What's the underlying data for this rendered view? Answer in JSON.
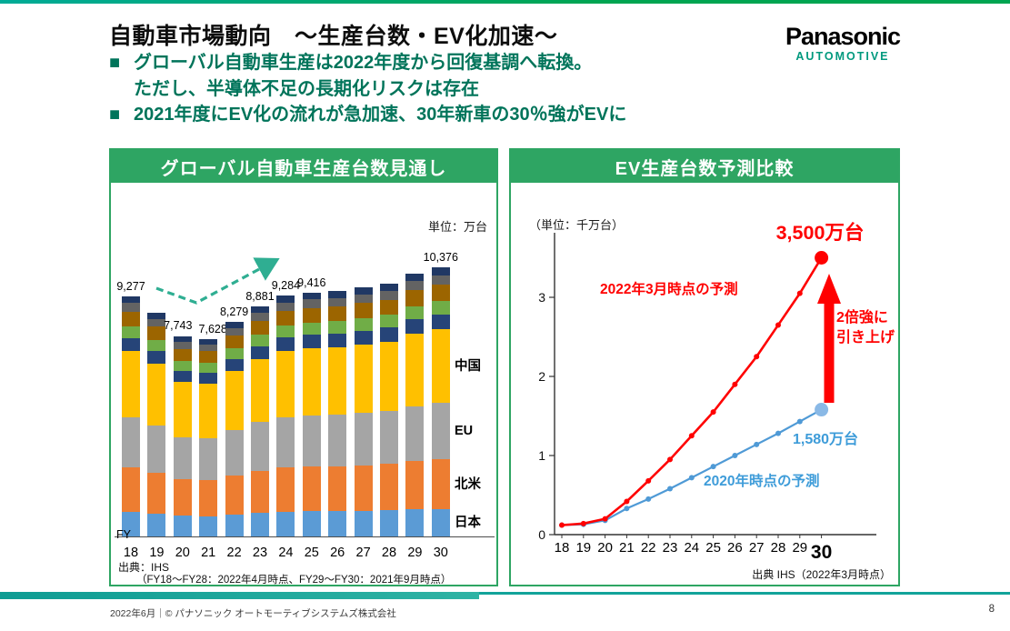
{
  "slide": {
    "title": "自動車市場動向　～生産台数・EV化加速～",
    "logo": {
      "brand": "Panasonic",
      "sub": "AUTOMOTIVE",
      "sub_color": "#00997E"
    },
    "bullets": [
      {
        "marker": "■",
        "text": "グローバル自動車生産は2022年度から回復基調へ転換。"
      },
      {
        "marker": "",
        "text": "ただし、半導体不足の長期化リスクは存在"
      },
      {
        "marker": "■",
        "text": "2021年度にEV化の流れが急加速、30年新車の30％強がEVに"
      }
    ],
    "accent_green": "#2EA563",
    "footer": {
      "left": "2022年6月｜© パナソニック オートモーティブシステムズ株式会社",
      "page": "8"
    }
  },
  "left_panel": {
    "header": "グローバル自動車生産台数見通し",
    "unit": "単位：万台",
    "fy_label": "FY",
    "source1": "出典：IHS",
    "source2": "（FY18～FY28：2022年4月時点、FY29～FY30：2021年9月時点）"
  },
  "right_panel": {
    "header": "EV生産台数予測比較",
    "unit": "（単位：千万台）",
    "source": "出典 IHS（2022年3月時点）"
  },
  "chart_data": [
    {
      "type": "bar",
      "stacked": true,
      "title": "グローバル自動車生産台数見通し",
      "unit": "万台",
      "categories": [
        "18",
        "19",
        "20",
        "21",
        "22",
        "23",
        "24",
        "25",
        "26",
        "27",
        "28",
        "29",
        "30"
      ],
      "totals": [
        9277,
        8650,
        7743,
        7628,
        8279,
        8881,
        9284,
        9416,
        9480,
        9620,
        9760,
        10150,
        10376
      ],
      "value_labels": {
        "0": "9,277",
        "2": "7,743",
        "3": "7,628",
        "4": "8,279",
        "5": "8,881",
        "6": "9,284",
        "7": "9,416",
        "12": "10,376"
      },
      "series": [
        {
          "key": "japan",
          "name": "日本",
          "color": "#5B9BD5",
          "fraction": 0.103
        },
        {
          "key": "north-america",
          "name": "北米",
          "color": "#ED7D31",
          "fraction": 0.183
        },
        {
          "key": "eu",
          "name": "EU",
          "color": "#A5A5A5",
          "fraction": 0.21
        },
        {
          "key": "china",
          "name": "中国",
          "color": "#FFC000",
          "fraction": 0.275
        },
        {
          "key": "other-1",
          "name": "other-1",
          "color": "#264478",
          "fraction": 0.055
        },
        {
          "key": "other-2",
          "name": "other-2",
          "color": "#70AD47",
          "fraction": 0.05
        },
        {
          "key": "other-3",
          "name": "other-3",
          "color": "#9C6500",
          "fraction": 0.06
        },
        {
          "key": "other-4",
          "name": "other-4",
          "color": "#636363",
          "fraction": 0.035
        },
        {
          "key": "other-5",
          "name": "other-5",
          "color": "#203864",
          "fraction": 0.029
        }
      ],
      "region_labels": [
        {
          "text": "中国",
          "series": "china"
        },
        {
          "text": "EU",
          "series": "eu"
        },
        {
          "text": "北米",
          "series": "north-america"
        },
        {
          "text": "日本",
          "series": "japan"
        }
      ]
    },
    {
      "type": "line",
      "unit": "千万台",
      "x": [
        "18",
        "19",
        "20",
        "21",
        "22",
        "23",
        "24",
        "25",
        "26",
        "27",
        "28",
        "29",
        "30"
      ],
      "ylim": [
        0,
        3.8
      ],
      "yticks": [
        0,
        1,
        2,
        3
      ],
      "series": [
        {
          "key": "forecast-2022",
          "name": "2022年3月時点の予測",
          "color": "#FF0000",
          "end_color": "#FF0000",
          "text_color": "#FF0000",
          "end_label": "3,500万台",
          "values": [
            0.12,
            0.14,
            0.2,
            0.42,
            0.68,
            0.95,
            1.25,
            1.55,
            1.9,
            2.25,
            2.65,
            3.05,
            3.5
          ]
        },
        {
          "key": "forecast-2020",
          "name": "2020年時点の予測",
          "color": "#4F9AD6",
          "end_color": "#8AB9E6",
          "text_color": "#3E9CD9",
          "end_label": "1,580万台",
          "values": [
            0.12,
            0.13,
            0.18,
            0.33,
            0.45,
            0.58,
            0.72,
            0.86,
            1.0,
            1.14,
            1.28,
            1.43,
            1.58
          ]
        }
      ],
      "arrow_label": [
        "2倍強に",
        "引き上げ"
      ]
    }
  ]
}
